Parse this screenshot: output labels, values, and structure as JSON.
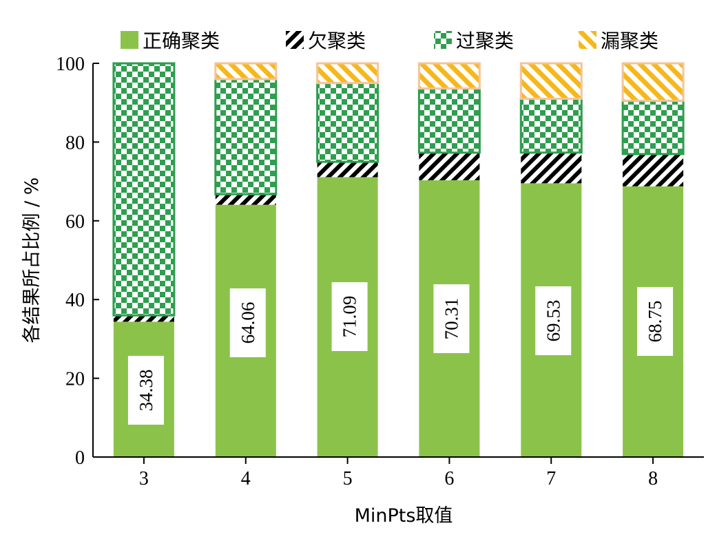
{
  "chart_data": {
    "type": "bar",
    "stacked": true,
    "title": "",
    "xlabel": "MinPts取值",
    "ylabel": "各结果所占比例 / %",
    "ylim": [
      0,
      100
    ],
    "yticks": [
      0,
      20,
      40,
      60,
      80,
      100
    ],
    "categories": [
      "3",
      "4",
      "5",
      "6",
      "7",
      "8"
    ],
    "legend_position": "top",
    "grid": false,
    "series": [
      {
        "name": "正确聚类",
        "color": "#8BC34A",
        "pattern": "solid",
        "values": [
          34.38,
          64.06,
          71.09,
          70.31,
          69.53,
          68.75
        ]
      },
      {
        "name": "欠聚类",
        "color": "#000000",
        "pattern": "diagonal-stripes",
        "values": [
          1.6,
          2.7,
          3.9,
          7.0,
          7.8,
          8.2
        ]
      },
      {
        "name": "过聚类",
        "color": "#2E9E4F",
        "pattern": "checker-dots",
        "values": [
          64.02,
          29.24,
          20.01,
          16.29,
          13.67,
          13.55
        ]
      },
      {
        "name": "漏聚类",
        "color": "#F5B81C",
        "pattern": "diagonal-stripes",
        "values": [
          0,
          4.0,
          5.0,
          6.4,
          9.0,
          9.5
        ]
      }
    ],
    "data_labels": [
      "34.38",
      "64.06",
      "71.09",
      "70.31",
      "69.53",
      "68.75"
    ]
  }
}
